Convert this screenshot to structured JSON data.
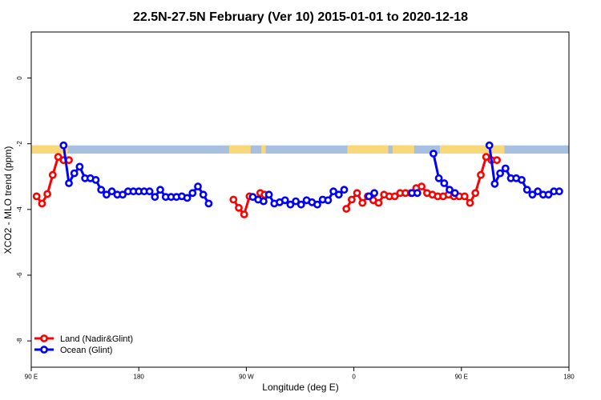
{
  "colors": {
    "land": "#ff0000",
    "ocean": "#0000ff",
    "map_ocean": "#a8c0e0",
    "map_land": "#f8d878"
  },
  "chart_data": {
    "type": "line",
    "title": "22.5N-27.5N February (Ver 10)   2015-01-01 to 2020-12-18",
    "xlabel": "Longitude (deg E)",
    "ylabel": "XCO2 - MLO trend (ppm)",
    "xlim": [
      90,
      340
    ],
    "ylim": [
      -8.8,
      1.4
    ],
    "x_ticks": [
      {
        "value": 90,
        "label": "90 E"
      },
      {
        "value": 140,
        "label": "180"
      },
      {
        "value": 190,
        "label": "90 W"
      },
      {
        "value": 240,
        "label": "0"
      },
      {
        "value": 290,
        "label": "90 E"
      },
      {
        "value": 340,
        "label": "180"
      }
    ],
    "y_ticks": [
      {
        "value": 0,
        "label": "0"
      },
      {
        "value": -2,
        "label": "-2"
      },
      {
        "value": -4,
        "label": "-4"
      },
      {
        "value": -6,
        "label": "-6"
      },
      {
        "value": -8,
        "label": "-8"
      }
    ],
    "map_strip": {
      "y_range": [
        -2.05,
        -2.3
      ],
      "land_spans": [
        [
          90,
          107
        ],
        [
          182,
          192
        ],
        [
          197,
          199
        ],
        [
          237,
          256
        ],
        [
          258,
          268
        ],
        [
          280,
          310
        ]
      ]
    },
    "legend": {
      "position": "bottom-left",
      "entries": [
        {
          "label": "Land (Nadir&Glint)",
          "series": "land"
        },
        {
          "label": "Ocean (Glint)",
          "series": "ocean"
        }
      ]
    },
    "series": [
      {
        "name": "Land (Nadir&Glint)",
        "color_key": "land",
        "segments": [
          [
            [
              92.5,
              -3.6
            ],
            [
              95,
              -3.82
            ],
            [
              97.5,
              -3.53
            ],
            [
              100,
              -2.95
            ],
            [
              102.5,
              -2.4
            ],
            [
              105,
              -2.5
            ],
            [
              107.5,
              -2.5
            ]
          ],
          [
            [
              184,
              -3.7
            ],
            [
              186.5,
              -3.95
            ],
            [
              189,
              -4.15
            ],
            [
              191.5,
              -3.6
            ]
          ],
          [
            [
              196.5,
              -3.5
            ],
            [
              198.5,
              -3.55
            ]
          ],
          [
            [
              236.5,
              -3.98
            ],
            [
              239,
              -3.7
            ],
            [
              241.5,
              -3.5
            ],
            [
              244,
              -3.8
            ],
            [
              246.5,
              -3.6
            ],
            [
              249,
              -3.72
            ],
            [
              251.5,
              -3.8
            ],
            [
              254,
              -3.55
            ],
            [
              256.5,
              -3.6
            ],
            [
              259,
              -3.6
            ],
            [
              261.5,
              -3.5
            ],
            [
              264,
              -3.5
            ],
            [
              266.5,
              -3.5
            ],
            [
              269,
              -3.35
            ],
            [
              271.5,
              -3.3
            ],
            [
              274,
              -3.5
            ],
            [
              276.5,
              -3.55
            ],
            [
              279,
              -3.6
            ],
            [
              281.5,
              -3.6
            ],
            [
              284,
              -3.55
            ],
            [
              286.5,
              -3.6
            ],
            [
              289,
              -3.6
            ],
            [
              291.5,
              -3.6
            ],
            [
              294,
              -3.8
            ],
            [
              296.5,
              -3.5
            ],
            [
              299,
              -2.95
            ],
            [
              301.5,
              -2.4
            ],
            [
              304,
              -2.5
            ],
            [
              306.5,
              -2.5
            ]
          ]
        ]
      },
      {
        "name": "Ocean (Glint)",
        "color_key": "ocean",
        "segments": [
          [
            [
              105,
              -2.05
            ],
            [
              107.5,
              -3.2
            ],
            [
              110,
              -2.9
            ],
            [
              112.5,
              -2.7
            ],
            [
              115,
              -3.05
            ],
            [
              117.5,
              -3.05
            ],
            [
              120,
              -3.1
            ],
            [
              122.5,
              -3.4
            ],
            [
              125,
              -3.55
            ],
            [
              127.5,
              -3.45
            ],
            [
              130,
              -3.55
            ],
            [
              132.5,
              -3.55
            ],
            [
              135,
              -3.45
            ],
            [
              137.5,
              -3.45
            ],
            [
              140,
              -3.45
            ],
            [
              142.5,
              -3.45
            ],
            [
              145,
              -3.45
            ],
            [
              147.5,
              -3.62
            ],
            [
              150,
              -3.4
            ],
            [
              152.5,
              -3.62
            ],
            [
              155,
              -3.62
            ],
            [
              157.5,
              -3.62
            ],
            [
              160,
              -3.6
            ],
            [
              162.5,
              -3.65
            ],
            [
              165,
              -3.5
            ],
            [
              167.5,
              -3.3
            ],
            [
              170,
              -3.55
            ],
            [
              172.5,
              -3.82
            ]
          ],
          [
            [
              193,
              -3.62
            ],
            [
              195.5,
              -3.7
            ],
            [
              198,
              -3.75
            ],
            [
              200.5,
              -3.55
            ],
            [
              203,
              -3.82
            ],
            [
              205.5,
              -3.78
            ],
            [
              208,
              -3.72
            ],
            [
              210.5,
              -3.85
            ],
            [
              213,
              -3.75
            ],
            [
              215.5,
              -3.85
            ],
            [
              218,
              -3.72
            ],
            [
              220.5,
              -3.78
            ],
            [
              223,
              -3.85
            ],
            [
              225.5,
              -3.7
            ],
            [
              228,
              -3.72
            ],
            [
              230.5,
              -3.45
            ],
            [
              233,
              -3.55
            ],
            [
              235.5,
              -3.4
            ]
          ],
          [
            [
              247,
              -3.6
            ],
            [
              249.5,
              -3.5
            ]
          ],
          [
            [
              267,
              -3.5
            ],
            [
              269.5,
              -3.5
            ]
          ],
          [
            [
              277,
              -2.3
            ],
            [
              279.5,
              -3.05
            ],
            [
              282,
              -3.2
            ],
            [
              284.5,
              -3.4
            ],
            [
              287,
              -3.5
            ]
          ],
          [
            [
              303,
              -2.05
            ],
            [
              305.5,
              -3.22
            ],
            [
              308,
              -2.9
            ],
            [
              310.5,
              -2.75
            ],
            [
              313,
              -3.05
            ],
            [
              315.5,
              -3.05
            ],
            [
              318,
              -3.1
            ],
            [
              320.5,
              -3.4
            ],
            [
              323,
              -3.55
            ],
            [
              325.5,
              -3.45
            ],
            [
              328,
              -3.55
            ],
            [
              330.5,
              -3.55
            ],
            [
              333,
              -3.45
            ],
            [
              335.5,
              -3.45
            ]
          ]
        ]
      }
    ]
  }
}
